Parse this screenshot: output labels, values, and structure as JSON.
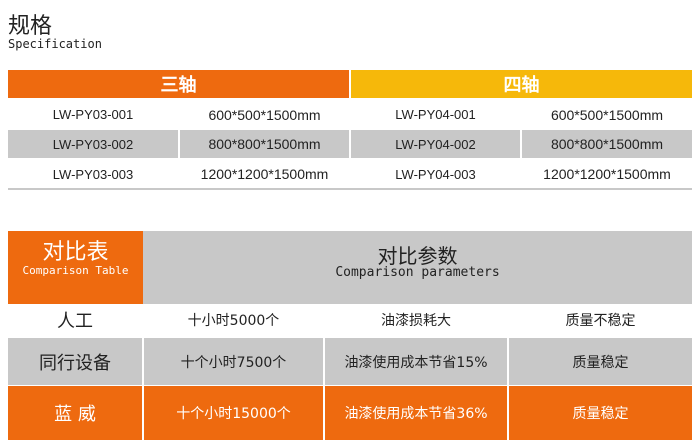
{
  "title": "规格",
  "subtitle": "Specification",
  "spec": {
    "three_axis": {
      "label": "三轴",
      "rows": [
        [
          "LW-PY03-001",
          "600*500*1500mm"
        ],
        [
          "LW-PY03-002",
          "800*800*1500mm"
        ],
        [
          "LW-PY03-003",
          "1200*1200*1500mm"
        ]
      ]
    },
    "four_axis": {
      "label": "四轴",
      "rows": [
        [
          "LW-PY04-001",
          "600*500*1500mm"
        ],
        [
          "LW-PY04-002",
          "800*800*1500mm"
        ],
        [
          "LW-PY04-003",
          "1200*1200*1500mm"
        ]
      ]
    }
  },
  "comparison": {
    "title": "对比表",
    "title_en": "Comparison Table",
    "params": "对比参数",
    "params_en": "Comparison parameters",
    "rows": [
      [
        "人工",
        "十小时5000个",
        "油漆损耗大",
        "质量不稳定"
      ],
      [
        "同行设备",
        "十个小时7500个",
        "油漆使用成本节省15%",
        "质量稳定"
      ],
      [
        "蓝 威",
        "十个小时15000个",
        "油漆使用成本节省36%",
        "质量稳定"
      ]
    ]
  },
  "colors": {
    "orange": "#ee6a0f",
    "yellow": "#f6b80a",
    "gray": "#c8c8c8"
  }
}
